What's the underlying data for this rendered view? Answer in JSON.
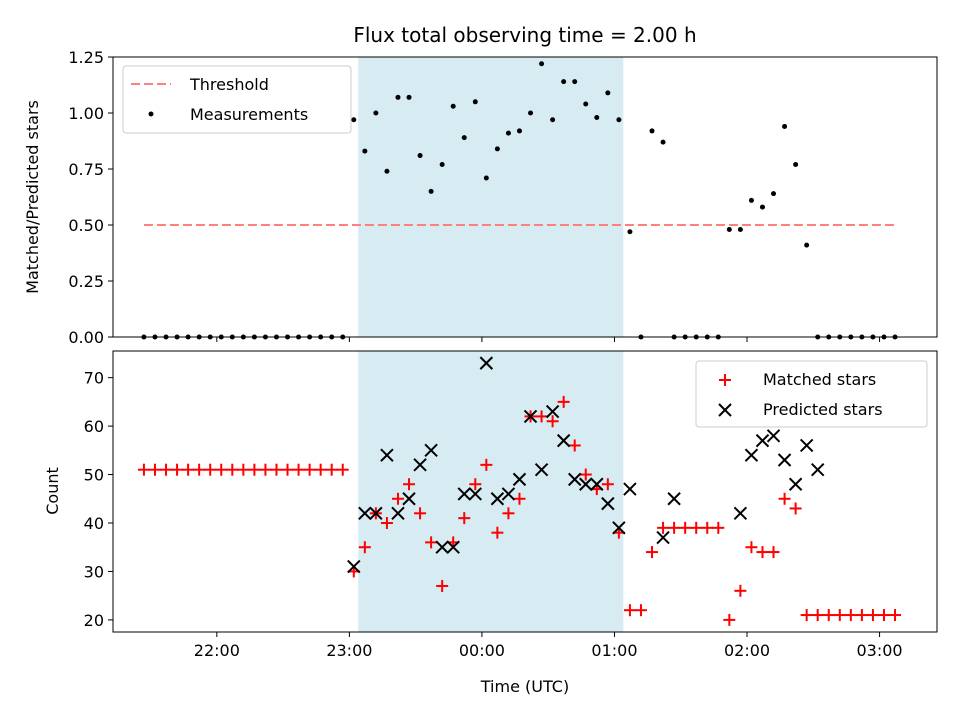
{
  "colors": {
    "threshold": "#ff7f7f",
    "shade": "#add8e6",
    "measurement": "#000000",
    "matched": "#ff0000",
    "predicted": "#000000"
  },
  "chart_data": [
    {
      "type": "scatter",
      "title": "Flux total observing time = 2.00 h",
      "xlabel": "",
      "ylabel": "Matched/Predicted stars",
      "ylim": [
        0,
        1.25
      ],
      "yticks": [
        "0.00",
        "0.25",
        "0.50",
        "0.75",
        "1.00",
        "1.25"
      ],
      "ytick_values": [
        0,
        0.25,
        0.5,
        0.75,
        1.0,
        1.25
      ],
      "legend_position": "top-left",
      "shaded_span": {
        "start": "23:04",
        "end": "01:04"
      },
      "threshold": {
        "name": "Threshold",
        "value": 0.5,
        "x": [
          "21:27",
          "03:07"
        ]
      },
      "series": [
        {
          "name": "Measurements",
          "x": [
            "21:27",
            "21:32",
            "21:37",
            "21:42",
            "21:47",
            "21:52",
            "21:57",
            "22:02",
            "22:07",
            "22:12",
            "22:17",
            "22:22",
            "22:27",
            "22:32",
            "22:37",
            "22:42",
            "22:47",
            "22:52",
            "22:57",
            "23:02",
            "23:07",
            "23:12",
            "23:17",
            "23:22",
            "23:27",
            "23:32",
            "23:37",
            "23:42",
            "23:47",
            "23:52",
            "23:57",
            "00:02",
            "00:07",
            "00:12",
            "00:17",
            "00:22",
            "00:27",
            "00:32",
            "00:37",
            "00:42",
            "00:47",
            "00:52",
            "00:57",
            "01:02",
            "01:07",
            "01:12",
            "01:17",
            "01:22",
            "01:27",
            "01:32",
            "01:37",
            "01:42",
            "01:47",
            "01:52",
            "01:57",
            "02:02",
            "02:07",
            "02:12",
            "02:17",
            "02:22",
            "02:27",
            "02:32",
            "02:37",
            "02:42",
            "02:47",
            "02:52",
            "02:57",
            "03:02",
            "03:07"
          ],
          "y": [
            0,
            0,
            0,
            0,
            0,
            0,
            0,
            0,
            0,
            0,
            0,
            0,
            0,
            0,
            0,
            0,
            0,
            0,
            0,
            0.97,
            0.83,
            1.0,
            0.74,
            1.07,
            1.07,
            0.81,
            0.65,
            0.77,
            1.03,
            0.89,
            1.05,
            0.71,
            0.84,
            0.91,
            0.92,
            1.0,
            1.22,
            0.97,
            1.14,
            1.14,
            1.04,
            0.98,
            1.09,
            0.97,
            0.47,
            0,
            0.92,
            0.87,
            0,
            0,
            0,
            0,
            0,
            0.48,
            0.48,
            0.61,
            0.58,
            0.64,
            0.94,
            0.77,
            0.41,
            0,
            0,
            0,
            0,
            0,
            0,
            0,
            0
          ]
        }
      ]
    },
    {
      "type": "scatter",
      "title": "",
      "xlabel": "Time (UTC)",
      "ylabel": "Count",
      "ylim": [
        17.5,
        75.5
      ],
      "yticks": [
        "20",
        "30",
        "40",
        "50",
        "60",
        "70"
      ],
      "ytick_values": [
        20,
        30,
        40,
        50,
        60,
        70
      ],
      "xlim": [
        "21:13",
        "03:26"
      ],
      "xticks": [
        "22:00",
        "23:00",
        "00:00",
        "01:00",
        "02:00",
        "03:00"
      ],
      "legend_position": "top-right",
      "shaded_span": {
        "start": "23:04",
        "end": "01:04"
      },
      "series": [
        {
          "name": "Matched stars",
          "marker": "plus",
          "x": [
            "21:27",
            "21:32",
            "21:37",
            "21:42",
            "21:47",
            "21:52",
            "21:57",
            "22:02",
            "22:07",
            "22:12",
            "22:17",
            "22:22",
            "22:27",
            "22:32",
            "22:37",
            "22:42",
            "22:47",
            "22:52",
            "22:57",
            "23:02",
            "23:07",
            "23:12",
            "23:17",
            "23:22",
            "23:27",
            "23:32",
            "23:37",
            "23:42",
            "23:47",
            "23:52",
            "23:57",
            "00:02",
            "00:07",
            "00:12",
            "00:17",
            "00:22",
            "00:27",
            "00:32",
            "00:37",
            "00:42",
            "00:47",
            "00:52",
            "00:57",
            "01:02",
            "01:07",
            "01:12",
            "01:17",
            "01:22",
            "01:27",
            "01:32",
            "01:37",
            "01:42",
            "01:47",
            "01:52",
            "01:57",
            "02:02",
            "02:07",
            "02:12",
            "02:17",
            "02:22",
            "02:27",
            "02:32",
            "02:37",
            "02:42",
            "02:47",
            "02:52",
            "02:57",
            "03:02",
            "03:07"
          ],
          "y": [
            51,
            51,
            51,
            51,
            51,
            51,
            51,
            51,
            51,
            51,
            51,
            51,
            51,
            51,
            51,
            51,
            51,
            51,
            51,
            30,
            35,
            42,
            40,
            45,
            48,
            42,
            36,
            27,
            36,
            41,
            48,
            52,
            38,
            42,
            45,
            62,
            62,
            61,
            65,
            56,
            50,
            47,
            48,
            38,
            22,
            22,
            34,
            39,
            39,
            39,
            39,
            39,
            39,
            20,
            26,
            35,
            34,
            34,
            45,
            43,
            21,
            21,
            21,
            21,
            21,
            21,
            21,
            21,
            21
          ]
        },
        {
          "name": "Predicted stars",
          "marker": "x",
          "x": [
            "23:02",
            "23:07",
            "23:12",
            "23:17",
            "23:22",
            "23:27",
            "23:32",
            "23:37",
            "23:42",
            "23:47",
            "23:52",
            "23:57",
            "00:02",
            "00:07",
            "00:12",
            "00:17",
            "00:22",
            "00:27",
            "00:32",
            "00:37",
            "00:42",
            "00:47",
            "00:52",
            "00:57",
            "01:02",
            "01:07",
            "01:22",
            "01:27",
            "01:57",
            "02:02",
            "02:07",
            "02:12",
            "02:17",
            "02:22",
            "02:27",
            "02:32"
          ],
          "y": [
            31,
            42,
            42,
            54,
            42,
            45,
            52,
            55,
            35,
            35,
            46,
            46,
            73,
            45,
            46,
            49,
            62,
            51,
            63,
            57,
            49,
            48,
            48,
            44,
            39,
            47,
            37,
            45,
            42,
            54,
            57,
            58,
            53,
            48,
            56,
            51
          ]
        }
      ]
    }
  ]
}
